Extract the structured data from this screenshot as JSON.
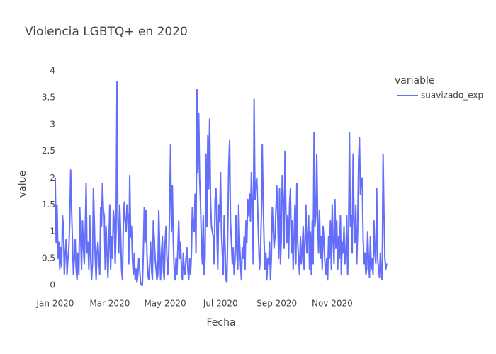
{
  "chart_data": {
    "type": "line",
    "title": "Violencia LGBTQ+ en 2020",
    "x_label": "Fecha",
    "y_label": "value",
    "legend_title": "variable",
    "legend_position": "right",
    "grid": false,
    "xlim": [
      -14,
      380
    ],
    "xticks": [
      {
        "value": 0,
        "label": "Jan 2020"
      },
      {
        "value": 60,
        "label": "Mar 2020"
      },
      {
        "value": 121,
        "label": "May 2020"
      },
      {
        "value": 182,
        "label": "Jul 2020"
      },
      {
        "value": 244,
        "label": "Sep 2020"
      },
      {
        "value": 305,
        "label": "Nov 2020"
      }
    ],
    "ylim": [
      -0.2,
      4.2
    ],
    "yticks": [
      0,
      0.5,
      1,
      1.5,
      2,
      2.5,
      3,
      3.5,
      4
    ],
    "series": [
      {
        "name": "suavizado_exp",
        "color": "#636efa",
        "values": [
          2.0,
          0.8,
          1.5,
          0.5,
          0.8,
          0.3,
          0.7,
          0.35,
          1.3,
          1.1,
          0.2,
          0.6,
          0.85,
          0.2,
          0.5,
          0.7,
          1.2,
          2.15,
          1.4,
          0.8,
          0.2,
          0.5,
          0.85,
          0.3,
          0.1,
          0.6,
          0.2,
          1.45,
          0.9,
          0.3,
          1.2,
          0.7,
          0.4,
          1.0,
          1.9,
          0.6,
          0.8,
          0.3,
          1.3,
          0.5,
          0.1,
          0.4,
          1.8,
          1.2,
          0.5,
          0.1,
          0.6,
          0.8,
          0.5,
          0.2,
          1.45,
          1.1,
          1.9,
          1.4,
          1.3,
          0.3,
          1.1,
          0.6,
          0.15,
          0.7,
          1.5,
          0.3,
          0.9,
          0.5,
          1.4,
          1.2,
          0.4,
          1.0,
          3.8,
          1.2,
          0.6,
          1.5,
          1.0,
          0.3,
          0.1,
          1.1,
          1.55,
          1.2,
          1.0,
          1.5,
          1.3,
          0.4,
          2.05,
          0.9,
          1.1,
          0.5,
          0.2,
          0.6,
          0.1,
          0.3,
          0.05,
          0.2,
          0.5,
          0.3,
          0.05,
          0.0,
          0.0,
          0.6,
          1.45,
          0.8,
          1.4,
          0.6,
          0.2,
          0.1,
          0.4,
          0.8,
          0.3,
          0.1,
          1.2,
          0.9,
          0.5,
          0.3,
          0.1,
          0.2,
          1.4,
          0.7,
          0.1,
          0.6,
          0.9,
          0.3,
          0.1,
          0.8,
          1.1,
          0.5,
          0.2,
          0.6,
          1.45,
          2.62,
          1.0,
          1.85,
          0.8,
          0.3,
          0.1,
          0.5,
          0.2,
          0.7,
          1.2,
          0.5,
          0.8,
          0.3,
          0.1,
          0.6,
          0.3,
          0.2,
          0.5,
          0.7,
          0.3,
          0.1,
          0.5,
          0.2,
          0.6,
          1.45,
          1.1,
          1.0,
          1.7,
          0.6,
          3.65,
          2.1,
          3.2,
          2.0,
          1.5,
          0.8,
          0.4,
          1.3,
          0.2,
          0.5,
          2.45,
          1.1,
          2.8,
          1.8,
          3.1,
          1.6,
          1.1,
          1.0,
          0.9,
          0.4,
          1.6,
          1.8,
          1.0,
          0.3,
          1.5,
          1.2,
          2.1,
          1.0,
          0.6,
          0.2,
          1.3,
          0.7,
          0.1,
          0.05,
          1.0,
          2.2,
          2.7,
          1.2,
          0.8,
          0.4,
          0.7,
          0.2,
          0.5,
          1.3,
          0.6,
          0.3,
          1.5,
          0.8,
          0.4,
          0.1,
          0.7,
          0.5,
          0.9,
          0.3,
          1.2,
          0.8,
          1.6,
          1.3,
          1.7,
          1.2,
          2.1,
          1.5,
          0.4,
          3.47,
          1.6,
          1.9,
          2.0,
          1.4,
          0.8,
          0.3,
          0.6,
          1.3,
          2.62,
          1.5,
          0.8,
          0.3,
          0.6,
          0.1,
          0.5,
          0.4,
          0.8,
          0.1,
          0.5,
          1.45,
          1.1,
          0.7,
          0.9,
          1.4,
          1.85,
          1.3,
          0.5,
          1.8,
          0.4,
          0.9,
          2.05,
          1.6,
          0.7,
          2.5,
          1.4,
          0.8,
          1.3,
          0.5,
          1.5,
          1.8,
          0.6,
          1.2,
          0.3,
          0.9,
          1.5,
          0.4,
          1.9,
          0.8,
          0.5,
          0.2,
          0.9,
          0.4,
          0.7,
          1.1,
          0.3,
          0.8,
          1.5,
          0.6,
          0.9,
          1.3,
          0.3,
          1.0,
          0.2,
          1.2,
          0.4,
          2.85,
          1.1,
          1.3,
          2.45,
          1.2,
          0.6,
          1.4,
          0.5,
          0.9,
          0.3,
          1.1,
          0.8,
          0.4,
          0.2,
          0.5,
          0.1,
          0.9,
          0.5,
          1.2,
          0.3,
          1.5,
          0.8,
          0.4,
          1.6,
          0.7,
          1.2,
          0.3,
          0.9,
          0.5,
          1.3,
          0.2,
          0.8,
          0.6,
          1.1,
          0.4,
          0.5,
          1.3,
          0.2,
          0.9,
          2.85,
          1.1,
          1.3,
          0.6,
          2.45,
          1.2,
          0.8,
          1.5,
          0.4,
          1.0,
          2.3,
          2.75,
          1.7,
          1.95,
          2.0,
          0.9,
          0.4,
          0.6,
          0.2,
          0.3,
          1.0,
          0.5,
          0.15,
          0.9,
          0.3,
          0.5,
          0.2,
          1.2,
          0.6,
          0.4,
          1.8,
          0.5,
          0.3,
          0.15,
          0.6,
          0.2,
          0.1,
          2.45,
          1.3,
          0.5,
          0.3,
          0.4
        ]
      }
    ]
  }
}
